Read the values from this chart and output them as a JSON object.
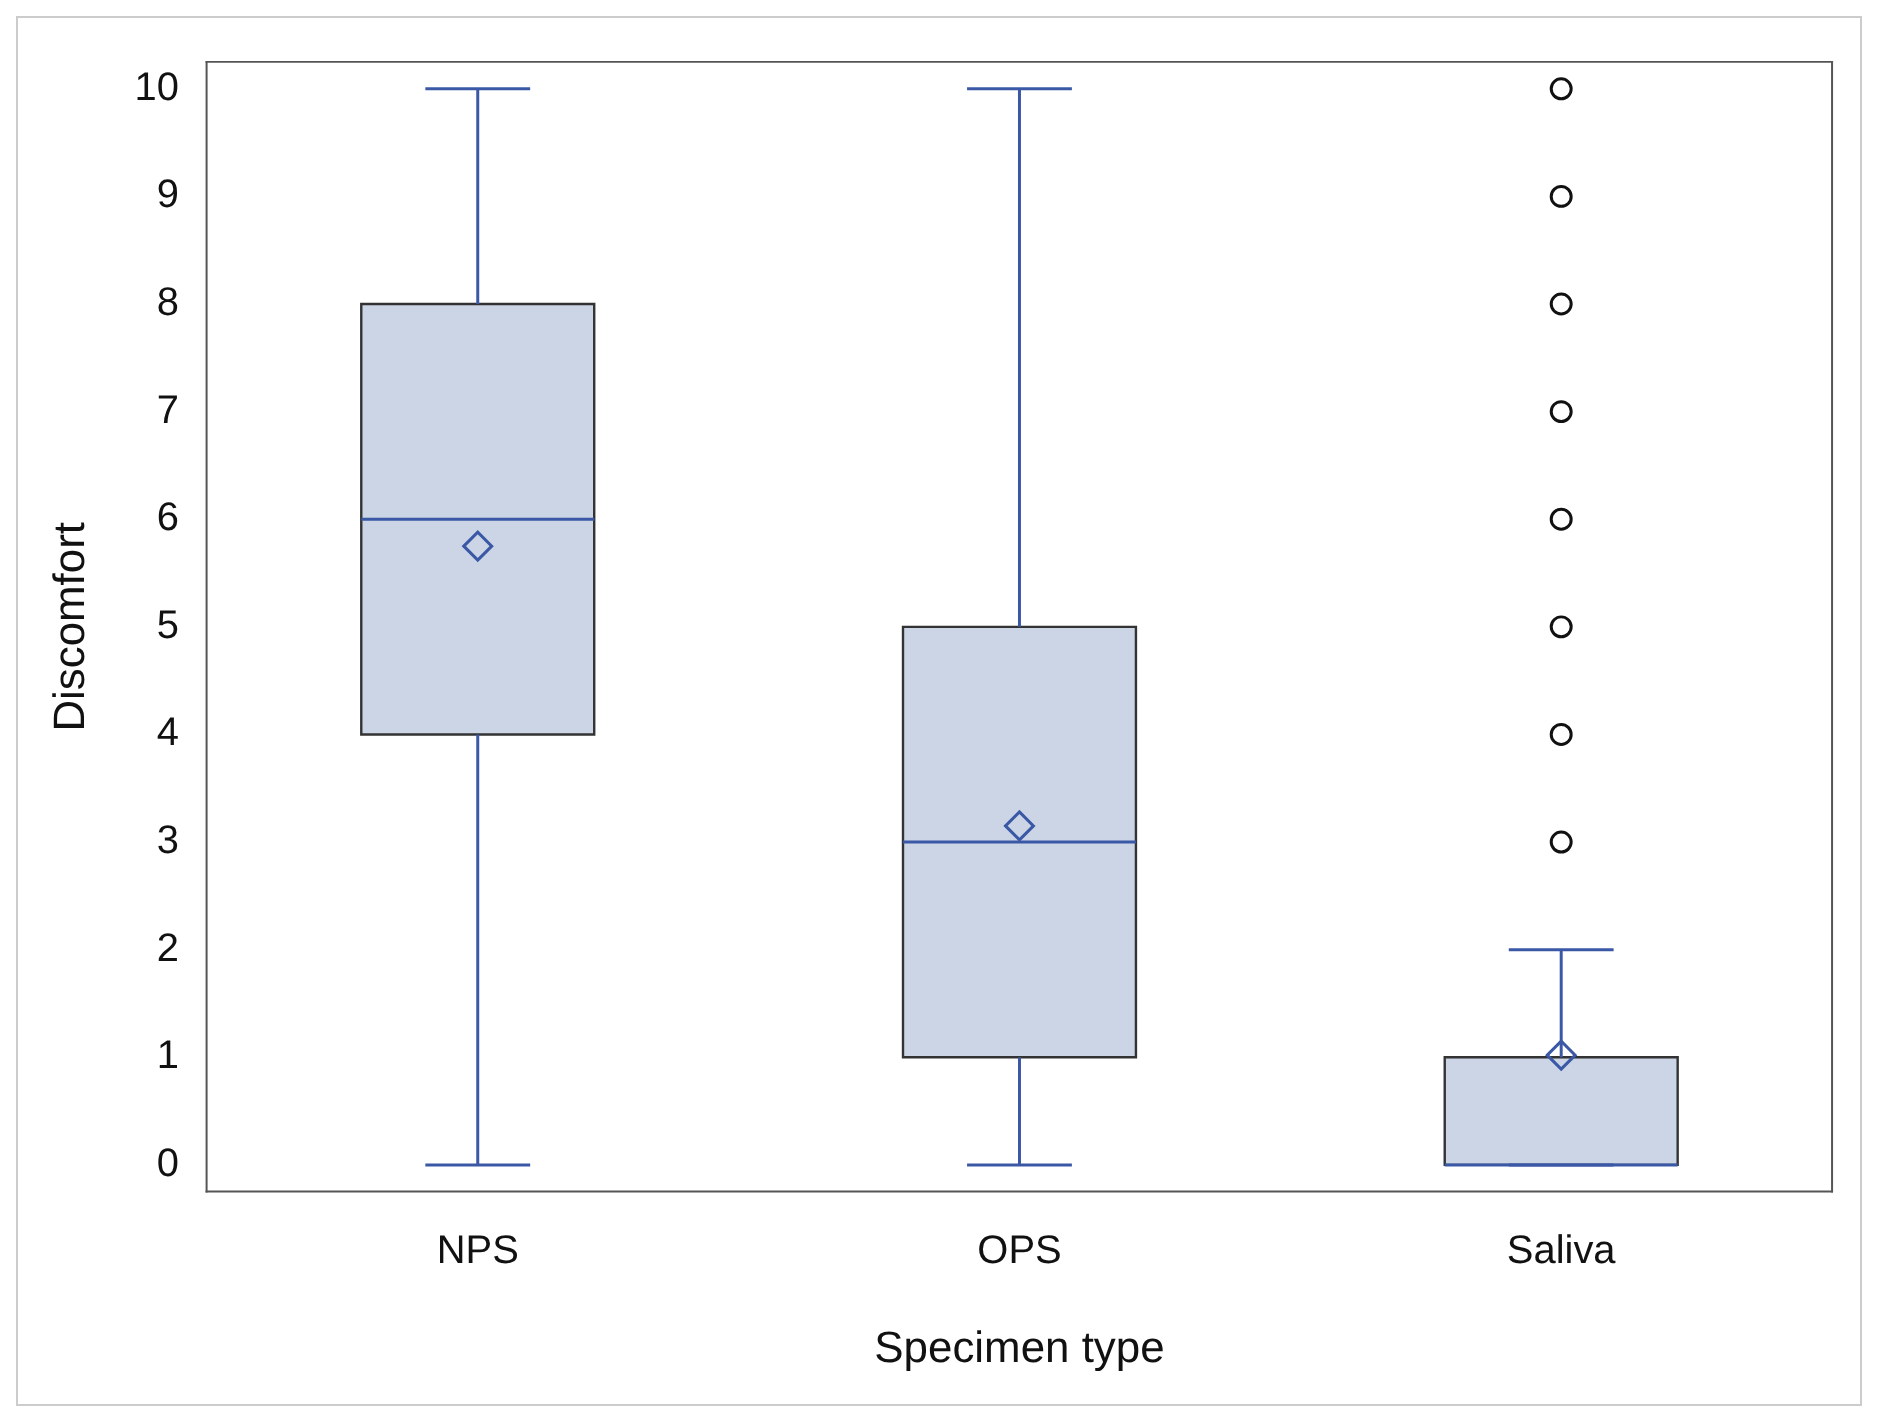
{
  "chart_data": {
    "type": "box",
    "xlabel": "Specimen type",
    "ylabel": "Discomfort",
    "categories": [
      "NPS",
      "OPS",
      "Saliva"
    ],
    "color": "#cbd5e5",
    "boxes": [
      {
        "low": 0,
        "q1": 4,
        "median": 6,
        "q3": 8,
        "high": 10,
        "mean": 5.75
      },
      {
        "low": 0,
        "q1": 1,
        "median": 3,
        "q3": 5,
        "high": 10,
        "mean": 3.15
      },
      {
        "low": 0,
        "q1": 0,
        "median": 0,
        "q3": 1,
        "high": 2,
        "mean": 1.02,
        "outliers": [
          3,
          4,
          5,
          6,
          7,
          8,
          9,
          10
        ]
      }
    ],
    "ylim": [
      -0.25,
      10.25
    ],
    "yticks": [
      0,
      1,
      2,
      3,
      4,
      5,
      6,
      7,
      8,
      9,
      10
    ]
  }
}
